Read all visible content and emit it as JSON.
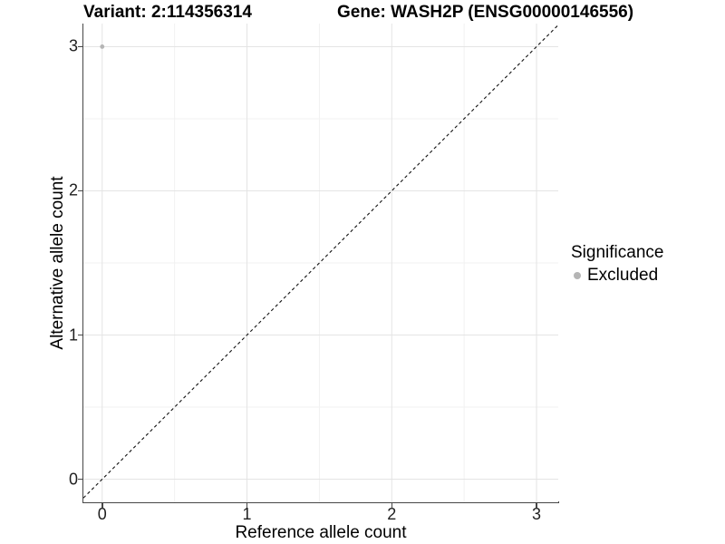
{
  "title": {
    "left": "Variant: 2:114356314",
    "right": "Gene: WASH2P (ENSG00000146556)"
  },
  "chart_data": {
    "type": "scatter",
    "title": "Variant: 2:114356314        Gene: WASH2P (ENSG00000146556)",
    "xlabel": "Reference allele count",
    "ylabel": "Alternative allele count",
    "xlim": [
      -0.13,
      3.15
    ],
    "ylim": [
      -0.16,
      3.16
    ],
    "xticks": [
      0,
      1,
      2,
      3
    ],
    "yticks": [
      0,
      1,
      2,
      3
    ],
    "minor_ticks": [
      0.5,
      1.5,
      2.5
    ],
    "grid": "major and minor, light grey on white",
    "series": [
      {
        "name": "Excluded",
        "color": "#b5b5b5",
        "point_radius": 2.4,
        "points": [
          {
            "x": 0,
            "y": 3
          }
        ]
      }
    ],
    "reference_line": {
      "kind": "identity y=x",
      "style": "dashed",
      "color": "#111111"
    },
    "legend": {
      "title": "Significance",
      "position": "right",
      "entries": [
        {
          "label": "Excluded",
          "color": "#b5b5b5"
        }
      ]
    },
    "colors": {
      "grid_major": "#e4e4e4",
      "grid_minor": "#f1f1f1",
      "axis_line": "#474747",
      "tick_label": "#1f1f1f",
      "background": "#ffffff"
    }
  }
}
